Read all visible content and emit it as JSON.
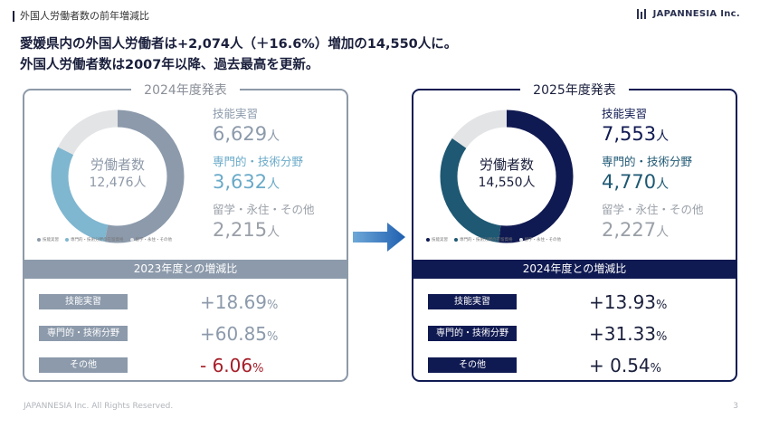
{
  "header": {
    "title": "外国人労働者数の前年増減比",
    "logo_text": "JAPANNESIA Inc."
  },
  "headline": {
    "line1": "愛媛県内の外国人労働者は+2,074人（＋16.6%）増加の14,550人に。",
    "line2": "外国人労働者数は2007年以降、過去最高を更新。"
  },
  "panels": {
    "old": {
      "title": "2024年度発表",
      "donut_name": "労働者数",
      "donut_total": "12,476人",
      "legend": [
        "技能実習",
        "専門的・技術分野の在留資格",
        "留学・永住・その他"
      ],
      "stats": [
        {
          "label": "技能実習",
          "value": "6,629",
          "unit": "人"
        },
        {
          "label": "専門的・技術分野",
          "value": "3,632",
          "unit": "人"
        },
        {
          "label": "留学・永住・その他",
          "value": "2,215",
          "unit": "人"
        }
      ],
      "compare_title": "2023年度との増減比",
      "compare": [
        {
          "label": "技能実習",
          "value": "+18.69",
          "pct": "%"
        },
        {
          "label": "専門的・技術分野",
          "value": "+60.85",
          "pct": "%"
        },
        {
          "label": "その他",
          "value": "-  6.06",
          "pct": "%"
        }
      ],
      "colors": [
        "#8c9aab",
        "#7fb6d0",
        "#e3e4e6"
      ]
    },
    "new": {
      "title": "2025年度発表",
      "donut_name": "労働者数",
      "donut_total": "14,550人",
      "legend": [
        "技能実習",
        "専門的・技術分野の在留資格",
        "留学・永住・その他"
      ],
      "stats": [
        {
          "label": "技能実習",
          "value": "7,553",
          "unit": "人"
        },
        {
          "label": "専門的・技術分野",
          "value": "4,770",
          "unit": "人"
        },
        {
          "label": "留学・永住・その他",
          "value": "2,227",
          "unit": "人"
        }
      ],
      "compare_title": "2024年度との増減比",
      "compare": [
        {
          "label": "技能実習",
          "value": "+13.93",
          "pct": "%"
        },
        {
          "label": "専門的・技術分野",
          "value": "+31.33",
          "pct": "%"
        },
        {
          "label": "その他",
          "value": "+  0.54",
          "pct": "%"
        }
      ],
      "colors": [
        "#101a52",
        "#1e5873",
        "#e3e4e6"
      ]
    }
  },
  "footer": {
    "copyright": "JAPANNESIA Inc. All Rights Reserved.",
    "page": "3"
  }
}
